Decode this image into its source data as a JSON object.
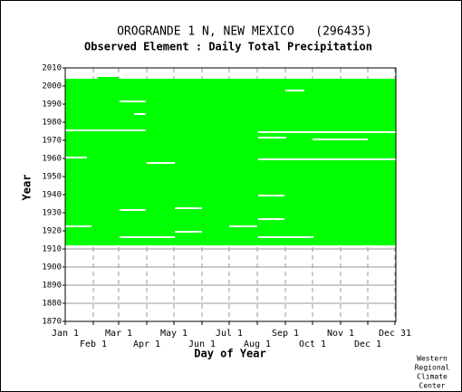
{
  "chart_data": {
    "type": "coverage",
    "title": "OROGRANDE 1 N, NEW MEXICO   (296435)",
    "subtitle": "Observed Element : Daily Total Precipitation",
    "x_label": "Day of Year",
    "y_label": "Year",
    "color": "#00ff00",
    "grid": true,
    "ylim": [
      1870,
      2010
    ],
    "yticks": [
      1870,
      1880,
      1890,
      1900,
      1910,
      1920,
      1930,
      1940,
      1950,
      1960,
      1970,
      1980,
      1990,
      2000,
      2010
    ],
    "xlim": [
      1,
      365
    ],
    "xticks": [
      {
        "value": 1,
        "label": "Jan 1"
      },
      {
        "value": 32,
        "label": "Feb 1"
      },
      {
        "value": 60,
        "label": "Mar 1"
      },
      {
        "value": 91,
        "label": "Apr 1"
      },
      {
        "value": 121,
        "label": "May 1"
      },
      {
        "value": 152,
        "label": "Jun 1"
      },
      {
        "value": 182,
        "label": "Jul 1"
      },
      {
        "value": 213,
        "label": "Aug 1"
      },
      {
        "value": 244,
        "label": "Sep 1"
      },
      {
        "value": 274,
        "label": "Oct 1"
      },
      {
        "value": 305,
        "label": "Nov 1"
      },
      {
        "value": 335,
        "label": "Dec 1"
      },
      {
        "value": 365,
        "label": "Dec 31"
      }
    ],
    "coverage": [
      {
        "start_year": 1912,
        "end_year": 2003,
        "start_day": 1,
        "end_day": 365
      },
      {
        "start_year": 2004,
        "end_year": 2004,
        "start_day": 37,
        "end_day": 59
      }
    ],
    "gaps": [
      {
        "year": 1975,
        "start_day": 1,
        "end_day": 89
      },
      {
        "year": 1974,
        "start_day": 214,
        "end_day": 365
      },
      {
        "year": 1960,
        "start_day": 1,
        "end_day": 24
      },
      {
        "year": 1959,
        "start_day": 214,
        "end_day": 365
      },
      {
        "year": 1922,
        "start_day": 1,
        "end_day": 29
      },
      {
        "year": 1931,
        "start_day": 61,
        "end_day": 89
      },
      {
        "year": 1932,
        "start_day": 122,
        "end_day": 151
      },
      {
        "year": 1939,
        "start_day": 214,
        "end_day": 242
      },
      {
        "year": 1926,
        "start_day": 214,
        "end_day": 242
      },
      {
        "year": 1916,
        "start_day": 61,
        "end_day": 121
      },
      {
        "year": 1919,
        "start_day": 122,
        "end_day": 151
      },
      {
        "year": 1916,
        "start_day": 214,
        "end_day": 274
      },
      {
        "year": 1922,
        "start_day": 182,
        "end_day": 212
      },
      {
        "year": 1991,
        "start_day": 61,
        "end_day": 89
      },
      {
        "year": 1984,
        "start_day": 77,
        "end_day": 89
      },
      {
        "year": 1957,
        "start_day": 91,
        "end_day": 121
      },
      {
        "year": 1971,
        "start_day": 214,
        "end_day": 244
      },
      {
        "year": 1970,
        "start_day": 274,
        "end_day": 334
      },
      {
        "year": 1997,
        "start_day": 244,
        "end_day": 264
      }
    ],
    "credit": [
      "Western",
      "Regional",
      "Climate",
      "Center"
    ]
  }
}
